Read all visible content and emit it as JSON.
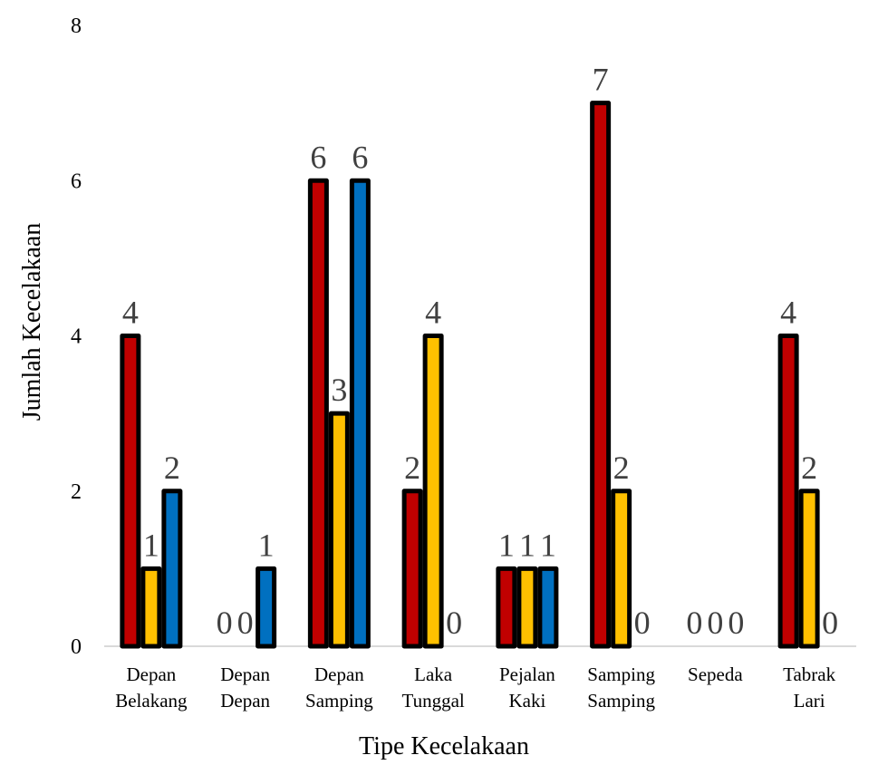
{
  "chart_data": {
    "type": "bar",
    "title": "",
    "xlabel": "Tipe Kecelakaan",
    "ylabel": "Jumlah Kecelakaan",
    "ylim": [
      0,
      8
    ],
    "yticks": [
      0,
      2,
      4,
      6,
      8
    ],
    "grid": false,
    "legend": "none",
    "categories": [
      [
        "Depan",
        "Belakang"
      ],
      [
        "Depan",
        "Depan"
      ],
      [
        "Depan",
        "Samping"
      ],
      [
        "Laka",
        "Tunggal"
      ],
      [
        "Pejalan",
        "Kaki"
      ],
      [
        "Samping",
        "Samping"
      ],
      [
        "Sepeda"
      ],
      [
        "Tabrak",
        "Lari"
      ]
    ],
    "series": [
      {
        "color": "#C00000",
        "values": [
          4,
          0,
          6,
          2,
          1,
          7,
          0,
          4
        ]
      },
      {
        "color": "#FFC000",
        "values": [
          1,
          0,
          3,
          4,
          1,
          2,
          0,
          2
        ]
      },
      {
        "color": "#0070C0",
        "values": [
          2,
          1,
          6,
          0,
          1,
          0,
          0,
          0
        ]
      }
    ]
  }
}
